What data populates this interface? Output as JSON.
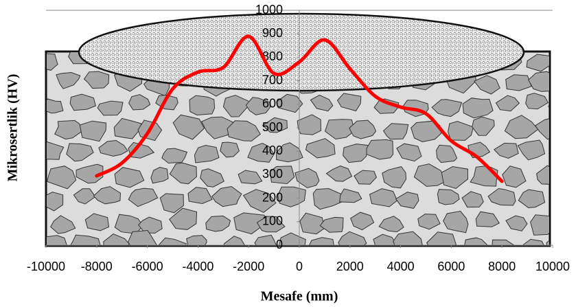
{
  "chart_data": {
    "type": "line",
    "x_label": "Mesafe (mm)",
    "y_label": "Mikrosertlik (HV)",
    "x": [
      -8000,
      -7000,
      -6000,
      -5000,
      -4000,
      -3000,
      -2000,
      -1000,
      0,
      1000,
      2000,
      3000,
      4000,
      5000,
      6000,
      7000,
      8000
    ],
    "series": [
      {
        "name": "Mikrosertlik",
        "color": "#ff0000",
        "values": [
          295,
          350,
          475,
          665,
          737,
          757,
          889,
          731,
          780,
          874,
          751,
          634,
          588,
          560,
          444,
          377,
          272
        ]
      }
    ],
    "xlim": [
      -10000,
      10000
    ],
    "xticks": [
      -10000,
      -8000,
      -6000,
      -4000,
      -2000,
      0,
      2000,
      4000,
      6000,
      8000,
      10000
    ],
    "ylim": [
      0,
      1000
    ],
    "yticks": [
      0,
      100,
      200,
      300,
      400,
      500,
      600,
      700,
      800,
      900,
      1000
    ]
  }
}
